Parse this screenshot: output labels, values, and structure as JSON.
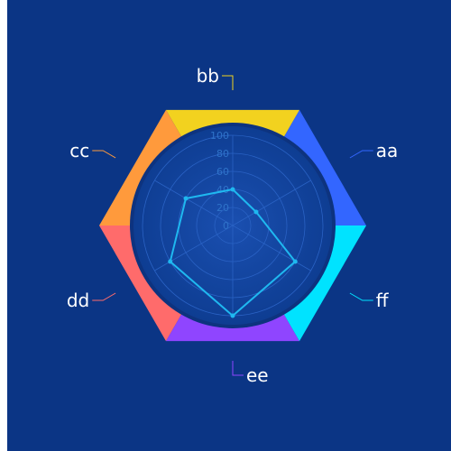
{
  "chart_data": {
    "type": "radar",
    "title": "",
    "indicators": [
      "aa",
      "bb",
      "cc",
      "dd",
      "ee",
      "ff"
    ],
    "segment_colors": [
      "#3366ff",
      "#f2d21f",
      "#ff9a3c",
      "#ff6b6b",
      "#8f45ff",
      "#00e3ff"
    ],
    "r_ticks": [
      "0",
      "20",
      "40",
      "60",
      "80",
      "100"
    ],
    "rlim": [
      0,
      100
    ],
    "series": [
      {
        "values": [
          30,
          40,
          60,
          80,
          100,
          80
        ]
      }
    ],
    "series_color": "#1fb8f0",
    "background_color": "#0b3585",
    "grid": true
  }
}
